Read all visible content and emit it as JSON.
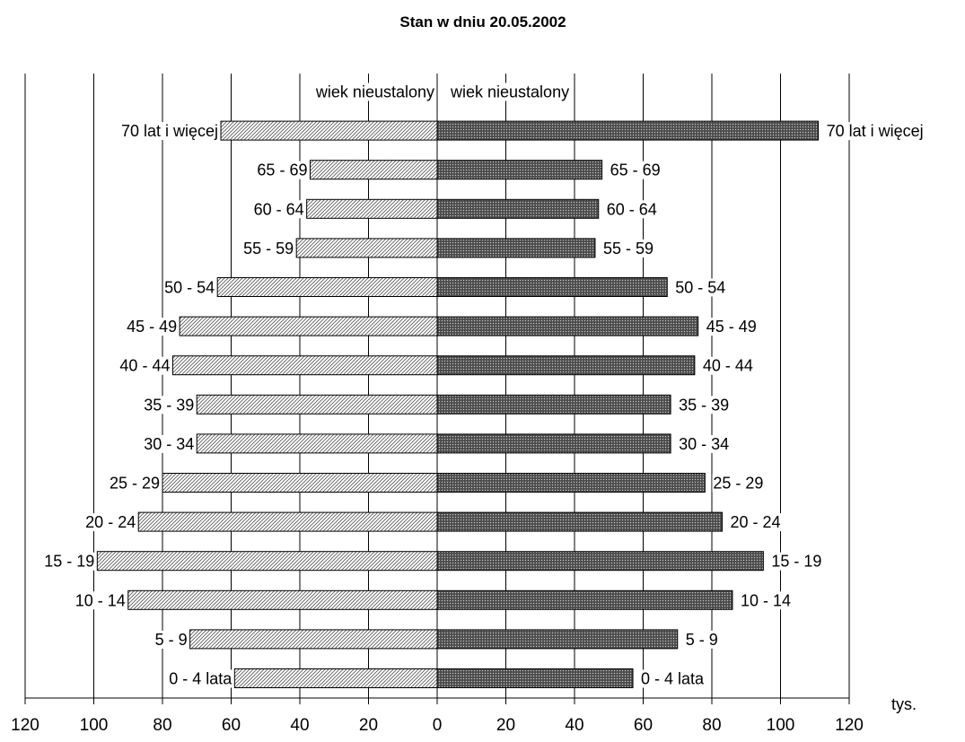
{
  "chart_data": {
    "type": "bar",
    "orientation": "horizontal",
    "layout": "population-pyramid",
    "title": "Stan w dniu 20.05.2002",
    "unit_label": "tys.",
    "xlim": [
      -120,
      120
    ],
    "x_ticks": [
      -120,
      -100,
      -80,
      -60,
      -40,
      -20,
      0,
      20,
      40,
      60,
      80,
      100,
      120
    ],
    "x_tick_labels": [
      "120",
      "100",
      "80",
      "60",
      "40",
      "20",
      "0",
      "20",
      "40",
      "60",
      "80",
      "100",
      "120"
    ],
    "grid": true,
    "categories": [
      "wiek nieustalony",
      "70 lat i więcej",
      "65 - 69",
      "60 - 64",
      "55 - 59",
      "50 - 54",
      "45 - 49",
      "40 - 44",
      "35 - 39",
      "30 - 34",
      "25 - 29",
      "20 - 24",
      "15 - 19",
      "10 - 14",
      "5 - 9",
      "0 - 4 lata"
    ],
    "series": [
      {
        "side": "left",
        "pattern": "light-hatch",
        "color": "#ffffff",
        "values": [
          0,
          63,
          37,
          38,
          41,
          64,
          75,
          77,
          70,
          70,
          80,
          87,
          99,
          90,
          72,
          59
        ]
      },
      {
        "side": "right",
        "pattern": "dark-dotted",
        "color": "#5a5a5a",
        "values": [
          0,
          111,
          48,
          47,
          46,
          67,
          76,
          75,
          68,
          68,
          78,
          83,
          95,
          86,
          70,
          57
        ]
      }
    ]
  }
}
